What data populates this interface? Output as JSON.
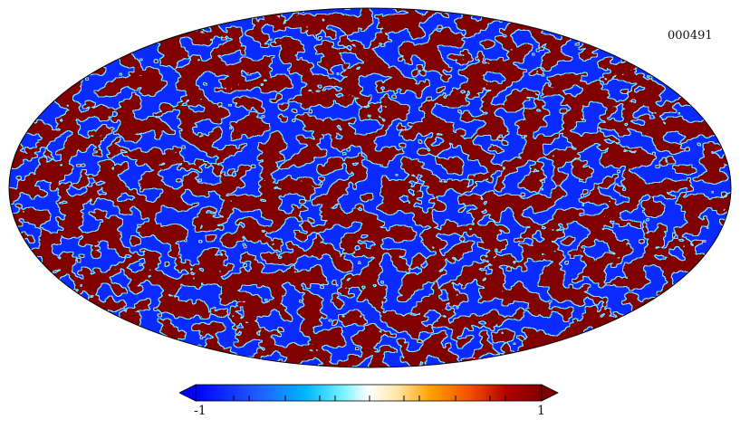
{
  "map": {
    "label": "000491",
    "projection": "mollweide",
    "colormap": [
      "#0000ff",
      "#1a66ff",
      "#00d5ff",
      "#ffffff",
      "#ffd58a",
      "#ff8c00",
      "#e84000",
      "#800000"
    ]
  },
  "colorbar": {
    "min_label": "-1",
    "max_label": "1",
    "range": [
      -1,
      1
    ]
  }
}
